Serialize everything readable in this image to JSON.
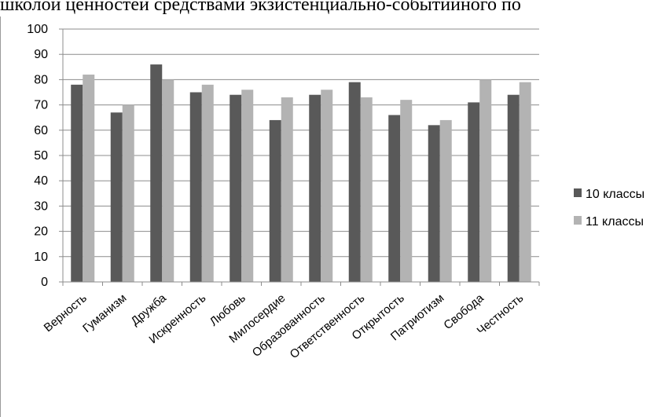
{
  "document": {
    "header_text": "школой ценностей средствами экзистенциально-событийного по"
  },
  "chart_data": {
    "type": "bar",
    "title": "",
    "xlabel": "",
    "ylabel": "",
    "ylim": [
      0,
      100
    ],
    "ytick_step": 10,
    "grid": true,
    "legend_position": "right",
    "categories": [
      "Верность",
      "Гуманизм",
      "Дружба",
      "Искренность",
      "Любовь",
      "Милосердие",
      "Образованность",
      "Ответственность",
      "Открытость",
      "Патриотизм",
      "Свобода",
      "Честность"
    ],
    "series": [
      {
        "name": "10 классы",
        "color": "#595959",
        "values": [
          78,
          67,
          86,
          75,
          74,
          64,
          74,
          79,
          66,
          62,
          71,
          74
        ]
      },
      {
        "name": "11 классы",
        "color": "#b3b3b3",
        "values": [
          82,
          70,
          80,
          78,
          76,
          73,
          76,
          73,
          72,
          64,
          80,
          79
        ]
      }
    ]
  }
}
